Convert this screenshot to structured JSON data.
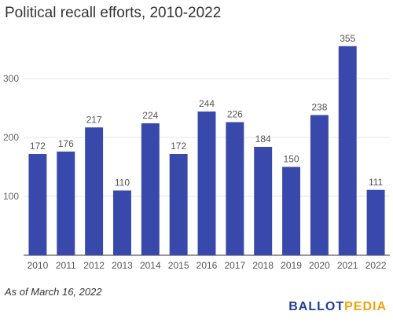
{
  "chart_data": {
    "type": "bar",
    "title": "Political recall efforts, 2010-2022",
    "xlabel": "",
    "ylabel": "",
    "categories": [
      "2010",
      "2011",
      "2012",
      "2013",
      "2014",
      "2015",
      "2016",
      "2017",
      "2018",
      "2019",
      "2020",
      "2021",
      "2022"
    ],
    "values": [
      172,
      176,
      217,
      110,
      224,
      172,
      244,
      226,
      184,
      150,
      238,
      355,
      111
    ],
    "ylim": [
      0,
      380
    ],
    "yticks": [
      100,
      200,
      300
    ],
    "grid": true,
    "data_labels": true,
    "bar_color": "#3949ab"
  },
  "footnote": "As of March 16, 2022",
  "logo": {
    "part1": "BALLOT",
    "part2": "PEDIA",
    "color1": "#1f3f8f",
    "color2": "#f0a30a"
  }
}
